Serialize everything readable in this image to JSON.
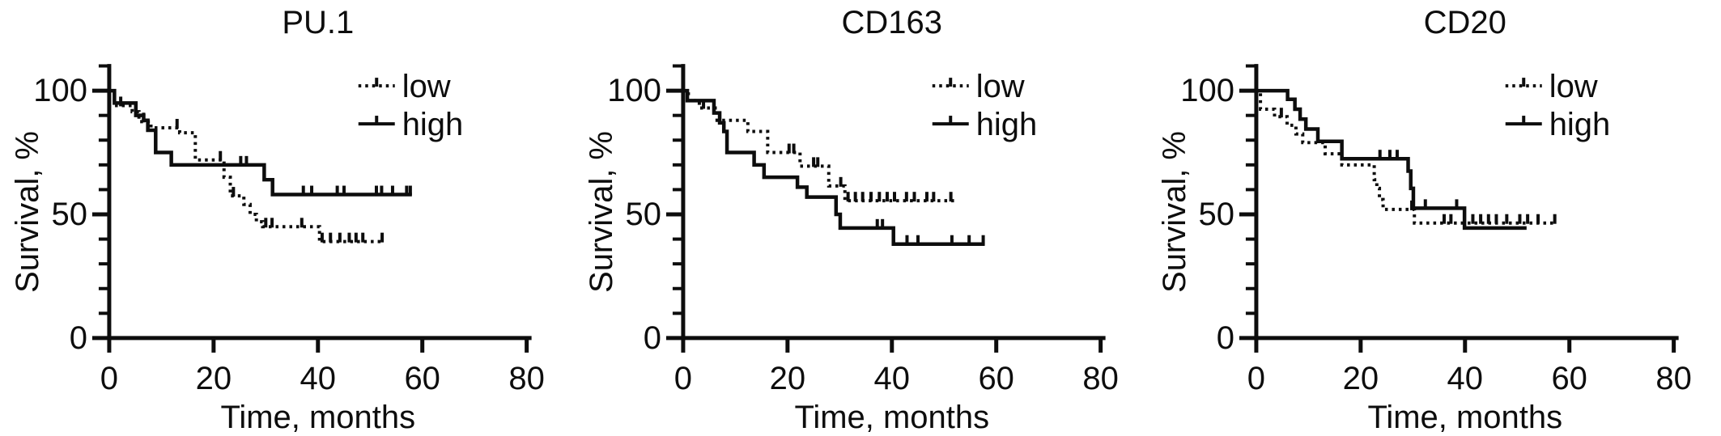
{
  "figure": {
    "background": "#ffffff",
    "line_color": "#0d0d0d",
    "description": "Three Kaplan-Meier survival panels"
  },
  "chart_data": [
    {
      "type": "line",
      "subtype": "kaplan-meier-step",
      "title": "PU.1",
      "xlabel": "Time, months",
      "ylabel": "Survival, %",
      "xlim": [
        0,
        80
      ],
      "ylim": [
        0,
        110
      ],
      "xticks": [
        0,
        20,
        40,
        60,
        80
      ],
      "yticks_major": [
        0,
        50,
        100
      ],
      "y_minor_step": 10,
      "y_minor_max": 110,
      "grid": false,
      "legend_position": "top-right",
      "series": [
        {
          "name": "low",
          "line_style": "dotted",
          "color": "#0d0d0d",
          "steps": [
            [
              0,
              100
            ],
            [
              1,
              94
            ],
            [
              4.4,
              91.5
            ],
            [
              5.7,
              87.5
            ],
            [
              8,
              85
            ],
            [
              13.5,
              83
            ],
            [
              16.5,
              72
            ],
            [
              22,
              65
            ],
            [
              23.2,
              57.5
            ],
            [
              25.8,
              54
            ],
            [
              27,
              50
            ],
            [
              28.2,
              47
            ],
            [
              29.4,
              45
            ],
            [
              40.3,
              39
            ],
            [
              52.5,
              39
            ]
          ],
          "censors": [
            [
              2.2,
              94
            ],
            [
              6.6,
              87.5
            ],
            [
              13,
              85
            ],
            [
              21.3,
              72
            ],
            [
              23.8,
              57.5
            ],
            [
              30,
              45
            ],
            [
              31.2,
              45
            ],
            [
              36.9,
              45
            ],
            [
              40.8,
              39
            ],
            [
              42.4,
              39
            ],
            [
              44.2,
              39
            ],
            [
              46,
              39
            ],
            [
              47.3,
              39
            ],
            [
              48.6,
              39
            ],
            [
              52.3,
              39
            ]
          ]
        },
        {
          "name": "high",
          "line_style": "solid",
          "color": "#0d0d0d",
          "steps": [
            [
              0,
              100
            ],
            [
              1,
              95
            ],
            [
              5.1,
              90
            ],
            [
              6.6,
              88
            ],
            [
              7.4,
              84
            ],
            [
              8.9,
              75
            ],
            [
              11.9,
              70
            ],
            [
              29.7,
              64
            ],
            [
              31.3,
              58
            ],
            [
              58,
              58
            ]
          ],
          "censors": [
            [
              25.2,
              70
            ],
            [
              26.3,
              70
            ],
            [
              37.2,
              58
            ],
            [
              38.8,
              58
            ],
            [
              43.7,
              58
            ],
            [
              45,
              58
            ],
            [
              51.2,
              58
            ],
            [
              52.2,
              58
            ],
            [
              54.3,
              58
            ],
            [
              57,
              58
            ],
            [
              57.7,
              58
            ]
          ]
        }
      ]
    },
    {
      "type": "line",
      "subtype": "kaplan-meier-step",
      "title": "CD163",
      "xlabel": "Time, months",
      "ylabel": "Survival, %",
      "xlim": [
        0,
        80
      ],
      "ylim": [
        0,
        110
      ],
      "xticks": [
        0,
        20,
        40,
        60,
        80
      ],
      "yticks_major": [
        0,
        50,
        100
      ],
      "y_minor_step": 10,
      "y_minor_max": 110,
      "grid": false,
      "legend_position": "top-right",
      "series": [
        {
          "name": "low",
          "line_style": "dotted",
          "color": "#0d0d0d",
          "steps": [
            [
              0,
              100
            ],
            [
              1,
              96
            ],
            [
              3.1,
              93
            ],
            [
              6.5,
              88
            ],
            [
              12.4,
              83.5
            ],
            [
              16.2,
              75
            ],
            [
              22.4,
              69.5
            ],
            [
              27.9,
              61.5
            ],
            [
              31,
              55.5
            ],
            [
              52.2,
              55.5
            ]
          ],
          "censors": [
            [
              3.9,
              93
            ],
            [
              20.3,
              75
            ],
            [
              21.2,
              75
            ],
            [
              25,
              69.5
            ],
            [
              25.8,
              69.5
            ],
            [
              30.2,
              61.5
            ],
            [
              31.6,
              55.5
            ],
            [
              33,
              55.5
            ],
            [
              34.4,
              55.5
            ],
            [
              36,
              55.5
            ],
            [
              37.6,
              55.5
            ],
            [
              39.1,
              55.5
            ],
            [
              40.5,
              55.5
            ],
            [
              42.8,
              55.5
            ],
            [
              44.3,
              55.5
            ],
            [
              46.7,
              55.5
            ],
            [
              48,
              55.5
            ],
            [
              51.3,
              55.5
            ]
          ],
          "note": ""
        },
        {
          "name": "high",
          "line_style": "solid",
          "color": "#0d0d0d",
          "steps": [
            [
              0,
              100
            ],
            [
              0.8,
              96
            ],
            [
              5.9,
              91
            ],
            [
              7,
              87
            ],
            [
              7.8,
              83.5
            ],
            [
              8.4,
              75
            ],
            [
              13.6,
              70
            ],
            [
              15.5,
              65
            ],
            [
              21.9,
              61
            ],
            [
              23.7,
              57
            ],
            [
              29.3,
              50
            ],
            [
              30.1,
              44.5
            ],
            [
              40.3,
              38
            ],
            [
              57.8,
              38
            ]
          ],
          "censors": [
            [
              37.2,
              44.5
            ],
            [
              38.2,
              44.5
            ],
            [
              42.9,
              38
            ],
            [
              45,
              38
            ],
            [
              51.5,
              38
            ],
            [
              54.8,
              38
            ],
            [
              57.5,
              38
            ]
          ]
        }
      ]
    },
    {
      "type": "line",
      "subtype": "kaplan-meier-step",
      "title": "CD20",
      "xlabel": "Time, months",
      "ylabel": "Survival, %",
      "xlim": [
        0,
        80
      ],
      "ylim": [
        0,
        110
      ],
      "xticks": [
        0,
        20,
        40,
        60,
        80
      ],
      "yticks_major": [
        0,
        50,
        100
      ],
      "y_minor_step": 10,
      "y_minor_max": 110,
      "grid": false,
      "legend_position": "top-right",
      "series": [
        {
          "name": "low",
          "line_style": "dotted",
          "color": "#0d0d0d",
          "steps": [
            [
              0,
              100
            ],
            [
              0.8,
              92.5
            ],
            [
              3.5,
              89.5
            ],
            [
              5.9,
              86
            ],
            [
              7.6,
              82.5
            ],
            [
              8.9,
              79
            ],
            [
              13.2,
              74.5
            ],
            [
              16.4,
              70
            ],
            [
              22.6,
              64
            ],
            [
              23.1,
              60.5
            ],
            [
              23.6,
              56
            ],
            [
              24.3,
              52
            ],
            [
              30.3,
              46.5
            ],
            [
              57.5,
              46.5
            ]
          ],
          "censors": [
            [
              4.8,
              89.5
            ],
            [
              29.8,
              52
            ],
            [
              36,
              46.5
            ],
            [
              37.3,
              46.5
            ],
            [
              41.5,
              46.5
            ],
            [
              43,
              46.5
            ],
            [
              44.5,
              46.5
            ],
            [
              46,
              46.5
            ],
            [
              48,
              46.5
            ],
            [
              50.5,
              46.5
            ],
            [
              52,
              46.5
            ],
            [
              54,
              46.5
            ],
            [
              57.2,
              46.5
            ]
          ]
        },
        {
          "name": "high",
          "line_style": "solid",
          "color": "#0d0d0d",
          "steps": [
            [
              0,
              100
            ],
            [
              6,
              96.5
            ],
            [
              7.4,
              92.5
            ],
            [
              8.4,
              88.5
            ],
            [
              9.5,
              84.5
            ],
            [
              11.8,
              79.5
            ],
            [
              16.4,
              72.5
            ],
            [
              29.1,
              67.5
            ],
            [
              29.6,
              60.5
            ],
            [
              30.1,
              52.5
            ],
            [
              39.9,
              44.5
            ],
            [
              51.8,
              44.5
            ]
          ],
          "censors": [
            [
              23.7,
              72.5
            ],
            [
              25.6,
              72.5
            ],
            [
              27,
              72.5
            ],
            [
              32.4,
              52.5
            ],
            [
              38.4,
              52.5
            ]
          ]
        }
      ]
    }
  ]
}
